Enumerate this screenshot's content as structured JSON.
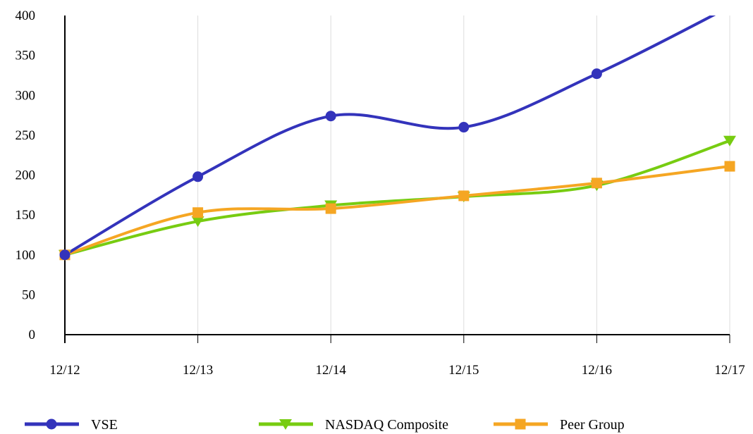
{
  "chart_data": {
    "type": "line",
    "title": "",
    "xlabel": "",
    "ylabel": "",
    "categories": [
      "12/12",
      "12/13",
      "12/14",
      "12/15",
      "12/16",
      "12/17"
    ],
    "ylim": [
      0,
      400
    ],
    "yticks": [
      "0",
      "50",
      "100",
      "150",
      "200",
      "250",
      "300",
      "350",
      "400"
    ],
    "grid": "vertical",
    "legend_position": "bottom",
    "series": [
      {
        "name": "VSE",
        "values": [
          100,
          198,
          274,
          260,
          327,
          411
        ],
        "color": "#3333bb",
        "marker": "circle"
      },
      {
        "name": "NASDAQ Composite",
        "values": [
          100,
          142,
          162,
          173,
          187,
          243
        ],
        "color": "#77cc11",
        "marker": "triangle-down"
      },
      {
        "name": "Peer Group",
        "values": [
          100,
          153,
          158,
          174,
          190,
          211
        ],
        "color": "#f5a623",
        "marker": "square"
      }
    ]
  }
}
